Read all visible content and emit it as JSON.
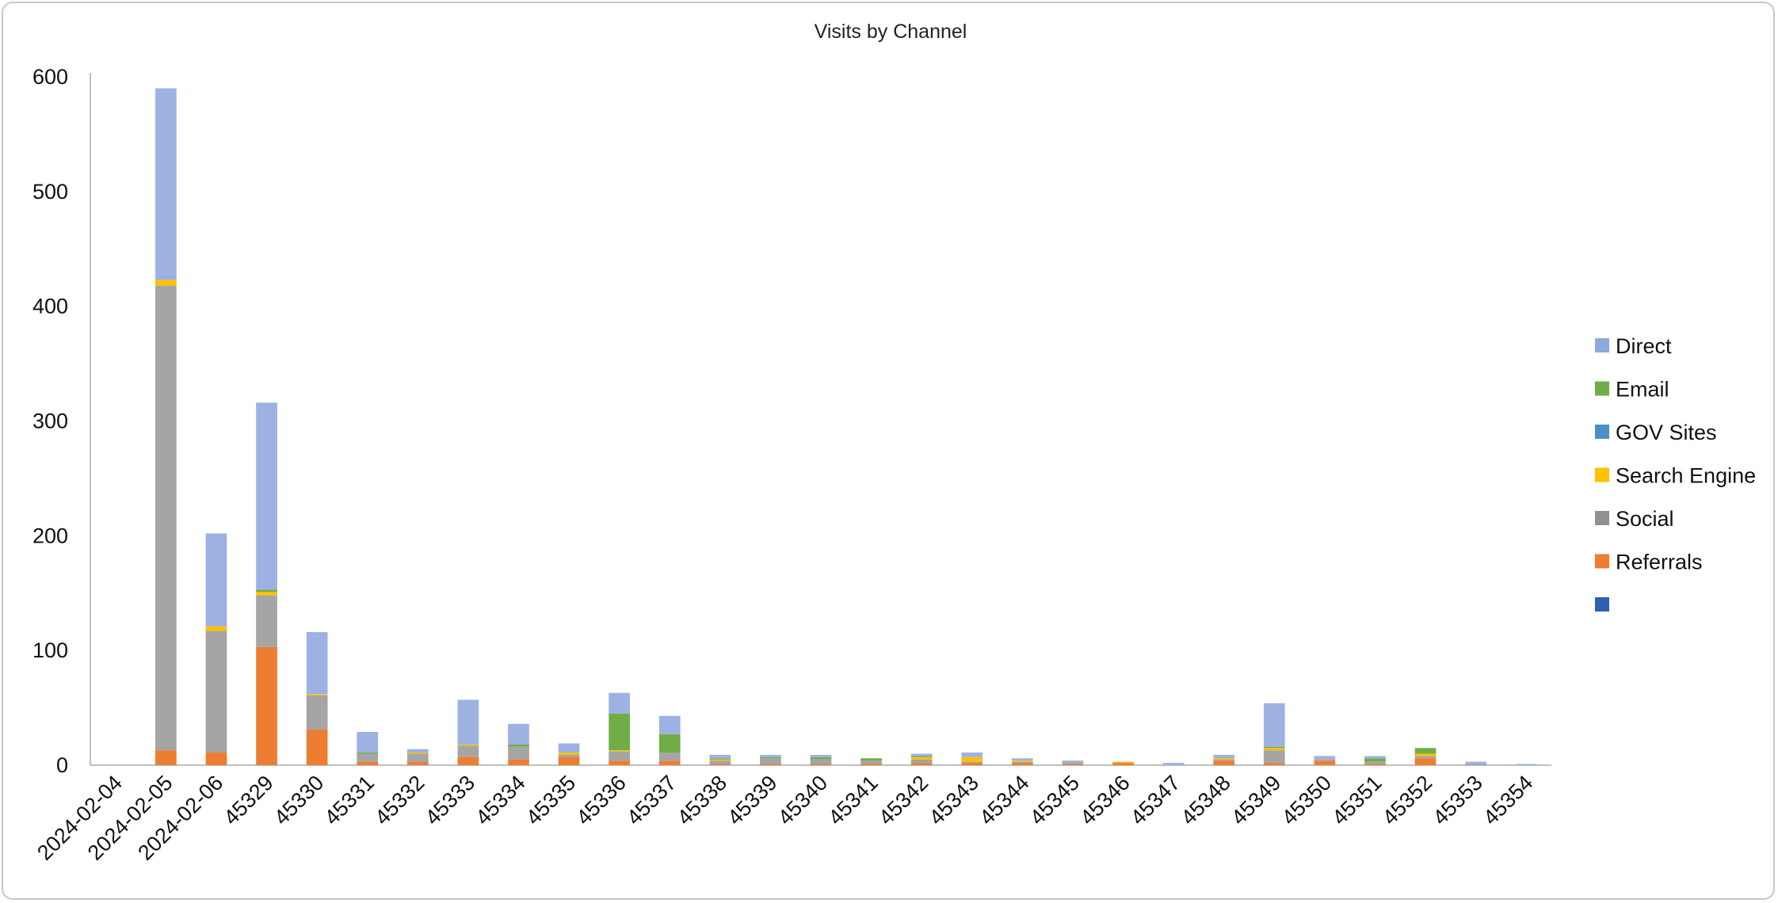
{
  "chart_data": {
    "type": "bar",
    "stacked": true,
    "title": "Visits by Channel",
    "xlabel": "",
    "ylabel": "",
    "ylim": [
      0,
      600
    ],
    "yticks": [
      0,
      100,
      200,
      300,
      400,
      500,
      600
    ],
    "grid": false,
    "legend_position": "right",
    "categories": [
      "2024-02-04",
      "2024-02-05",
      "2024-02-06",
      "45329",
      "45330",
      "45331",
      "45332",
      "45333",
      "45334",
      "45335",
      "45336",
      "45337",
      "45338",
      "45339",
      "45340",
      "45341",
      "45342",
      "45343",
      "45344",
      "45345",
      "45346",
      "45347",
      "45348",
      "45349",
      "45350",
      "45351",
      "45352",
      "45353",
      "45354"
    ],
    "series": [
      {
        "name": "Referrals",
        "color": "#ED7D31",
        "values": [
          0,
          13,
          11,
          103,
          31,
          3,
          3,
          7,
          5,
          7,
          4,
          4,
          1,
          1,
          1,
          1,
          2,
          2,
          2,
          1,
          2,
          0,
          4,
          2,
          4,
          1,
          6,
          0,
          0
        ]
      },
      {
        "name": "Social",
        "color": "#A5A5A5",
        "values": [
          0,
          405,
          106,
          45,
          30,
          7,
          7,
          10,
          11,
          2,
          8,
          7,
          3,
          5,
          4,
          3,
          3,
          1,
          1,
          1,
          0,
          0,
          1,
          11,
          1,
          2,
          2,
          1,
          0
        ]
      },
      {
        "name": "Search Engine",
        "color": "#FFC000",
        "values": [
          0,
          5,
          4,
          3,
          1,
          0,
          1,
          1,
          0,
          2,
          1,
          0,
          1,
          0,
          0,
          0,
          2,
          4,
          1,
          0,
          1,
          0,
          1,
          2,
          0,
          0,
          2,
          0,
          0
        ]
      },
      {
        "name": "GOV Sites",
        "color": "#5B9BD5",
        "values": [
          0,
          0,
          0,
          0,
          0,
          0,
          0,
          0,
          0,
          0,
          0,
          0,
          0,
          0,
          0,
          0,
          0,
          0,
          0,
          0,
          0,
          0,
          0,
          0,
          0,
          0,
          0,
          0,
          0
        ]
      },
      {
        "name": "Email",
        "color": "#70AD47",
        "values": [
          0,
          0,
          0,
          2,
          0,
          1,
          0,
          0,
          2,
          0,
          32,
          16,
          1,
          1,
          2,
          2,
          1,
          0,
          0,
          0,
          0,
          0,
          0,
          1,
          0,
          3,
          5,
          0,
          0
        ]
      },
      {
        "name": "Direct",
        "color": "#9EB1E3",
        "values": [
          0,
          167,
          81,
          163,
          54,
          18,
          3,
          39,
          18,
          8,
          18,
          16,
          3,
          2,
          2,
          0,
          2,
          4,
          2,
          2,
          0,
          2,
          3,
          38,
          3,
          2,
          0,
          2,
          1
        ]
      }
    ],
    "legend": [
      {
        "name": "Direct",
        "color": "#8EA9DB"
      },
      {
        "name": "Email",
        "color": "#70AD47"
      },
      {
        "name": "GOV Sites",
        "color": "#4A90C8"
      },
      {
        "name": "Search Engine",
        "color": "#FFC000"
      },
      {
        "name": "Social",
        "color": "#909090"
      },
      {
        "name": "Referrals",
        "color": "#ED7D31"
      },
      {
        "name": "",
        "color": "#2F5FB0"
      }
    ]
  }
}
